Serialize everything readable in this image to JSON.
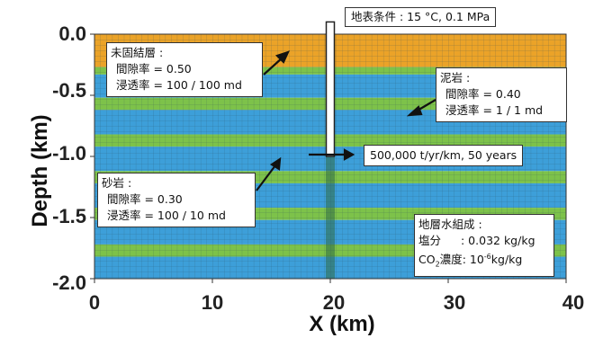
{
  "chart_data": {
    "type": "diagram",
    "xlabel": "X (km)",
    "ylabel": "Depth (km)",
    "xlim": [
      0,
      40
    ],
    "ylim": [
      -2.0,
      0.0
    ],
    "xticks": [
      "0",
      "10",
      "20",
      "30",
      "40"
    ],
    "yticks": [
      "0.0",
      "-0.5",
      "-1.0",
      "-1.5",
      "-2.0"
    ],
    "xtick_values": [
      0,
      10,
      20,
      30,
      40
    ],
    "ytick_values": [
      0.0,
      -0.5,
      -1.0,
      -1.5,
      -2.0
    ],
    "layers": [
      {
        "type": "unconsolidated",
        "top": 0.0,
        "bottom": -0.27
      },
      {
        "type": "sandstone",
        "top": -0.27,
        "bottom": -0.33
      },
      {
        "type": "mudstone",
        "top": -0.33,
        "bottom": -0.52
      },
      {
        "type": "sandstone",
        "top": -0.52,
        "bottom": -0.62
      },
      {
        "type": "mudstone",
        "top": -0.62,
        "bottom": -0.82
      },
      {
        "type": "sandstone",
        "top": -0.82,
        "bottom": -0.92
      },
      {
        "type": "mudstone",
        "top": -0.92,
        "bottom": -1.12
      },
      {
        "type": "sandstone",
        "top": -1.12,
        "bottom": -1.22
      },
      {
        "type": "mudstone",
        "top": -1.22,
        "bottom": -1.42
      },
      {
        "type": "sandstone",
        "top": -1.42,
        "bottom": -1.52
      },
      {
        "type": "mudstone",
        "top": -1.52,
        "bottom": -1.72
      },
      {
        "type": "sandstone",
        "top": -1.72,
        "bottom": -1.82
      },
      {
        "type": "mudstone",
        "top": -1.82,
        "bottom": -2.0
      }
    ],
    "well": {
      "x": 20,
      "top": 0.1,
      "bottom": -1.0
    },
    "injection_zone_x": 20
  },
  "colors": {
    "unconsolidated": "#eba328",
    "sandstone": "#7dc24a",
    "mudstone": "#3d9fd9",
    "grid_line": "#2a4a5a",
    "well_fill": "#ffffff",
    "arrow": "#111111",
    "injection_zone": "#2f6b45"
  },
  "annotations": {
    "surface": {
      "text": "地表条件 : 15 °C, 0.1 MPa"
    },
    "injection": {
      "text": "500,000 t/yr/km, 50 years"
    },
    "unconsolidated": {
      "title": "未固結層 :",
      "porosity": "間隙率 = 0.50",
      "permeability": "浸透率 = 100 / 100 md"
    },
    "mudstone": {
      "title": "泥岩 :",
      "porosity": "間隙率 = 0.40",
      "permeability": "浸透率 = 1 / 1 md"
    },
    "sandstone": {
      "title": "砂岩 :",
      "porosity": "間隙率 = 0.30",
      "permeability": "浸透率 = 100 / 10 md"
    },
    "water": {
      "title": "地層水組成 :",
      "salinity_label": "塩分",
      "salinity_value": ": 0.032 kg/kg",
      "co2_label_main": "CO",
      "co2_label_sub": "2",
      "co2_label_tail": "濃度",
      "co2_value_pre": ": 10",
      "co2_value_exp": "-6",
      "co2_value_post": "kg/kg"
    }
  }
}
